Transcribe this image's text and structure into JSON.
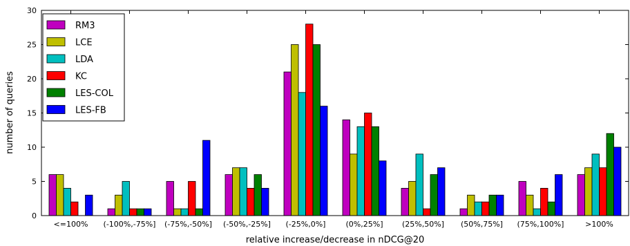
{
  "chart_data": {
    "type": "bar",
    "xlabel": "relative increase/decrease in nDCG@20",
    "ylabel": "number of queries",
    "ylim": [
      0,
      30
    ],
    "yticks": [
      0,
      5,
      10,
      15,
      20,
      25,
      30
    ],
    "grid": false,
    "legend_position": "top-left",
    "categories": [
      "<=100%",
      "(-100%,-75%]",
      "(-75%,-50%]",
      "(-50%,-25%]",
      "(-25%,0%]",
      "(0%,25%]",
      "(25%,50%]",
      "(50%,75%]",
      "(75%,100%]",
      ">100%"
    ],
    "series": [
      {
        "name": "RM3",
        "color": "#bf00bf",
        "values": [
          6,
          1,
          5,
          6,
          21,
          14,
          4,
          1,
          5,
          6
        ]
      },
      {
        "name": "LCE",
        "color": "#bfbf00",
        "values": [
          6,
          3,
          1,
          7,
          25,
          9,
          5,
          3,
          3,
          7
        ]
      },
      {
        "name": "LDA",
        "color": "#00bfbf",
        "values": [
          4,
          5,
          1,
          7,
          18,
          13,
          9,
          2,
          1,
          9
        ]
      },
      {
        "name": "KC",
        "color": "#ff0000",
        "values": [
          2,
          1,
          5,
          4,
          28,
          15,
          1,
          2,
          4,
          7
        ]
      },
      {
        "name": "LES-COL",
        "color": "#008000",
        "values": [
          0,
          1,
          1,
          6,
          25,
          13,
          6,
          3,
          2,
          12
        ]
      },
      {
        "name": "LES-FB",
        "color": "#0000ff",
        "values": [
          3,
          1,
          11,
          4,
          16,
          8,
          7,
          3,
          6,
          10
        ]
      }
    ]
  }
}
